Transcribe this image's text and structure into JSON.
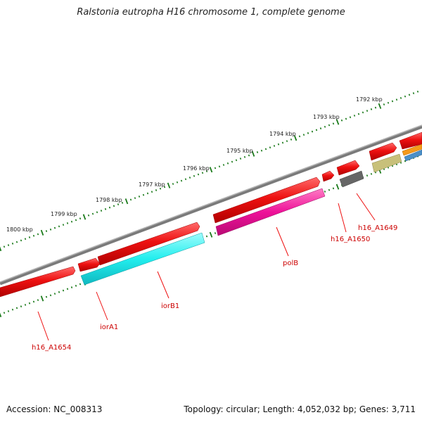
{
  "title": "Ralstonia eutropha H16 chromosome 1, complete genome",
  "footer": {
    "accession": "Accession: NC_008313",
    "summary": "Topology: circular; Length: 4,052,032 bp; Genes: 3,711"
  },
  "scale": {
    "ticks": [
      "1792 kbp",
      "1793 kbp",
      "1794 kbp",
      "1795 kbp",
      "1796 kbp",
      "1797 kbp",
      "1798 kbp",
      "1799 kbp",
      "1800 kbp"
    ]
  },
  "genes": [
    {
      "label": "h16_A1649"
    },
    {
      "label": "h16_A1650"
    },
    {
      "label": "polB"
    },
    {
      "label": "iorB1"
    },
    {
      "label": "iorA1"
    },
    {
      "label": "h16_A1654"
    }
  ],
  "colors": {
    "backbone": "#888888",
    "forward_gene": "#ee1111",
    "iorB1": "#22eeee",
    "polB": "#ee1199",
    "gray_gene": "#666666",
    "olive_gene": "#c8c07a",
    "orange_gene": "#f59a1a",
    "blue_gene": "#4a90c8",
    "tick_marks": "#1a7a1a"
  }
}
